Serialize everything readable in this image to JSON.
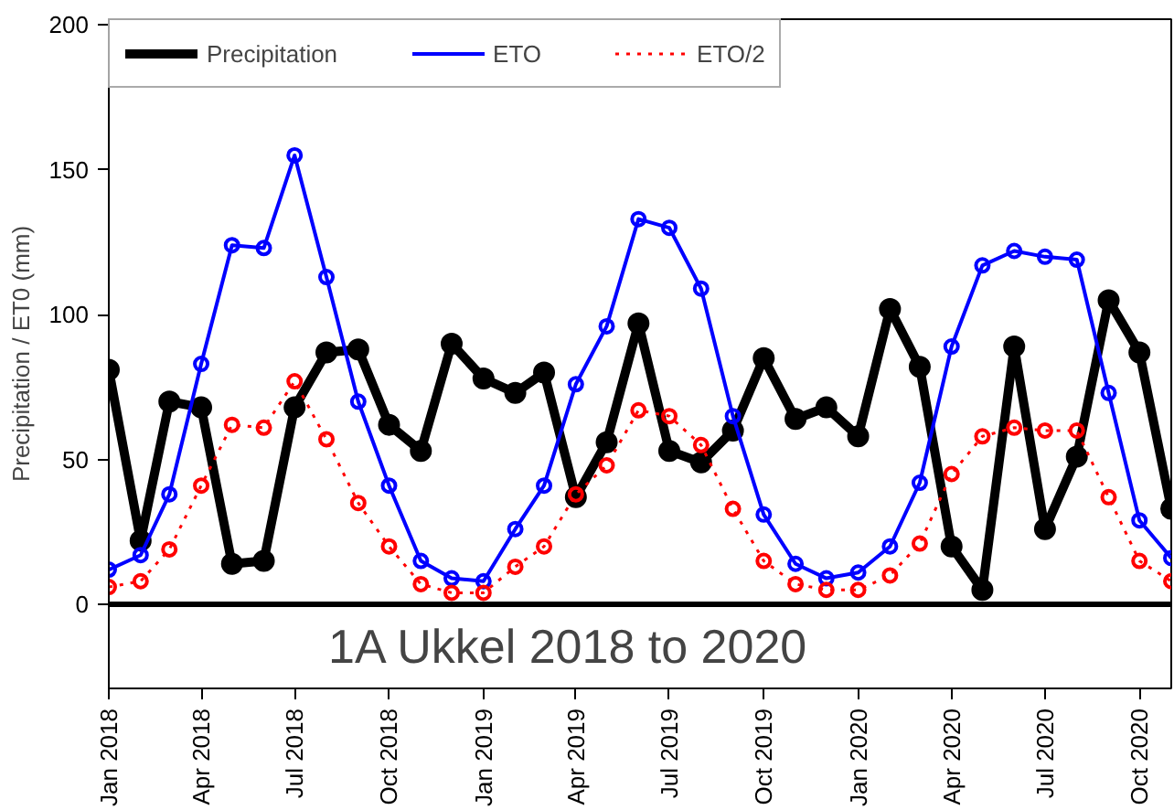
{
  "chart_data": {
    "type": "line",
    "ylabel": "Precipitation / ET0 (mm)",
    "x": [
      "2018-01",
      "2018-02",
      "2018-03",
      "2018-04",
      "2018-05",
      "2018-06",
      "2018-07",
      "2018-08",
      "2018-09",
      "2018-10",
      "2018-11",
      "2018-12",
      "2019-01",
      "2019-02",
      "2019-03",
      "2019-04",
      "2019-05",
      "2019-06",
      "2019-07",
      "2019-08",
      "2019-09",
      "2019-10",
      "2019-11",
      "2019-12",
      "2020-01",
      "2020-02",
      "2020-03",
      "2020-04",
      "2020-05",
      "2020-06",
      "2020-07",
      "2020-08",
      "2020-09",
      "2020-10",
      "2020-11"
    ],
    "series": [
      {
        "name": "Precipitation",
        "color": "#000000",
        "values": [
          81,
          22,
          70,
          68,
          14,
          15,
          68,
          87,
          88,
          62,
          53,
          90,
          78,
          73,
          80,
          37,
          56,
          97,
          53,
          49,
          60,
          85,
          64,
          68,
          58,
          102,
          82,
          20,
          5,
          89,
          26,
          51,
          105,
          87,
          33
        ]
      },
      {
        "name": "ETO",
        "color": "#0000ff",
        "values": [
          12,
          17,
          38,
          83,
          124,
          123,
          155,
          113,
          70,
          41,
          15,
          9,
          8,
          26,
          41,
          76,
          96,
          133,
          130,
          109,
          65,
          31,
          14,
          9,
          11,
          20,
          42,
          89,
          117,
          122,
          120,
          119,
          73,
          29,
          16
        ]
      },
      {
        "name": "ETO/2",
        "color": "#ff0000",
        "line_style": "dotted",
        "values": [
          6,
          8,
          19,
          41,
          62,
          61,
          77,
          57,
          35,
          20,
          7,
          4,
          4,
          13,
          20,
          38,
          48,
          67,
          65,
          55,
          33,
          15,
          7,
          5,
          5,
          10,
          21,
          45,
          58,
          61,
          60,
          60,
          37,
          15,
          8
        ]
      }
    ],
    "marker": "circle",
    "grid": false,
    "legend": "top left",
    "xlim": [
      "2018-01",
      "2020-11"
    ],
    "ylim": [
      -29,
      202
    ],
    "xticks": [
      {
        "value": "2018-01",
        "label": "Jan 2018"
      },
      {
        "value": "2018-04",
        "label": "Apr 2018"
      },
      {
        "value": "2018-07",
        "label": "Jul 2018"
      },
      {
        "value": "2018-10",
        "label": "Oct 2018"
      },
      {
        "value": "2019-01",
        "label": "Jan 2019"
      },
      {
        "value": "2019-04",
        "label": "Apr 2019"
      },
      {
        "value": "2019-07",
        "label": "Jul 2019"
      },
      {
        "value": "2019-10",
        "label": "Oct 2019"
      },
      {
        "value": "2020-01",
        "label": "Jan 2020"
      },
      {
        "value": "2020-04",
        "label": "Apr 2020"
      },
      {
        "value": "2020-07",
        "label": "Jul 2020"
      },
      {
        "value": "2020-10",
        "label": "Oct 2020"
      }
    ],
    "yticks": [
      0,
      50,
      100,
      150,
      200
    ],
    "ref_lines": [
      {
        "axis": "y",
        "value": 0,
        "color": "#000000"
      }
    ],
    "annotations": [
      "1A Ukkel 2018 to 2020"
    ]
  }
}
